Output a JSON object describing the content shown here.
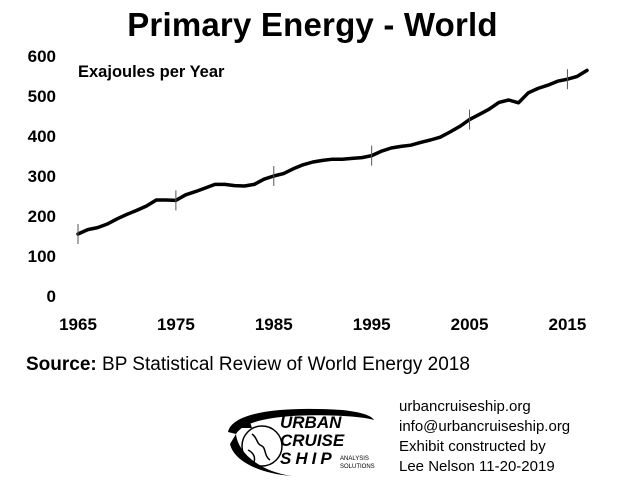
{
  "chart_data": {
    "type": "line",
    "title": "Primary Energy - World",
    "ylabel": "Exajoules per Year",
    "xlabel": "",
    "xlim": [
      1965,
      2017
    ],
    "ylim": [
      0,
      600
    ],
    "x_ticks": [
      1965,
      1975,
      1985,
      1995,
      2005,
      2015
    ],
    "y_ticks": [
      0,
      100,
      200,
      300,
      400,
      500,
      600
    ],
    "grid": false,
    "series": [
      {
        "name": "Primary Energy",
        "color": "#000000",
        "x": [
          1965,
          1966,
          1967,
          1968,
          1969,
          1970,
          1971,
          1972,
          1973,
          1974,
          1975,
          1976,
          1977,
          1978,
          1979,
          1980,
          1981,
          1982,
          1983,
          1984,
          1985,
          1986,
          1987,
          1988,
          1989,
          1990,
          1991,
          1992,
          1993,
          1994,
          1995,
          1996,
          1997,
          1998,
          1999,
          2000,
          2001,
          2002,
          2003,
          2004,
          2005,
          2006,
          2007,
          2008,
          2009,
          2010,
          2011,
          2012,
          2013,
          2014,
          2015,
          2016,
          2017
        ],
        "values": [
          155,
          166,
          171,
          180,
          193,
          204,
          214,
          225,
          240,
          240,
          239,
          253,
          261,
          270,
          279,
          279,
          276,
          275,
          279,
          292,
          300,
          306,
          318,
          328,
          335,
          339,
          342,
          342,
          344,
          346,
          351,
          362,
          370,
          374,
          377,
          384,
          390,
          397,
          410,
          424,
          441,
          454,
          467,
          484,
          490,
          483,
          508,
          519,
          527,
          537,
          542,
          549,
          564
        ]
      }
    ]
  },
  "source": {
    "label": "Source:",
    "text": " BP Statistical Review of World Energy 2018"
  },
  "contact": {
    "website": "urbancruiseship.org",
    "email": "info@urbancruiseship.org",
    "credit_line1": "Exhibit constructed by",
    "credit_line2": "Lee Nelson 11-20-2019"
  },
  "logo": {
    "line1": "URBAN",
    "line2": "CRUISE",
    "line3": "SHIP",
    "tagline1": "ANALYSIS",
    "tagline2": "SOLUTIONS"
  }
}
